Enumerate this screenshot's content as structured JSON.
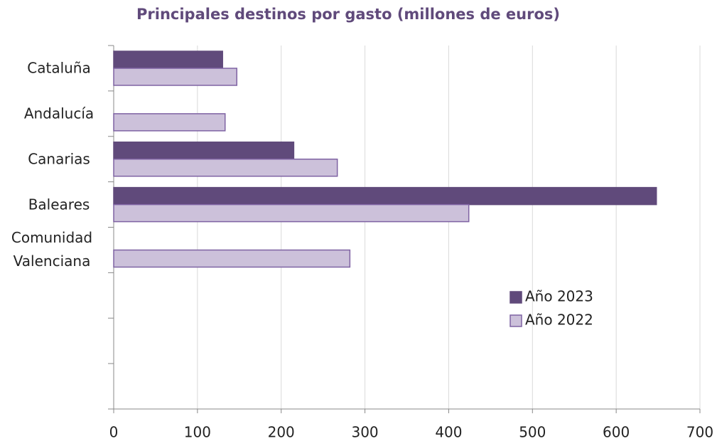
{
  "chart_data": {
    "type": "hbar",
    "title": "Principales destinos por gasto (millones de euros)",
    "categories": [
      "Cataluña",
      "Andalucía",
      "Canarias",
      "Baleares",
      "Comunidad Valenciana",
      null,
      null,
      null
    ],
    "series": [
      {
        "name": "Año 2023",
        "color": "#604a7b",
        "edge": "#604a7b",
        "values": [
          130,
          null,
          215,
          648,
          null,
          null,
          null,
          null
        ]
      },
      {
        "name": "Año 2022",
        "color": "#ccc1da",
        "edge": "#7f63a3",
        "values": [
          147,
          133,
          267,
          424,
          282,
          null,
          null,
          null
        ]
      }
    ],
    "xlim": [
      0,
      700
    ],
    "xticks": [
      0,
      100,
      200,
      300,
      400,
      500,
      600,
      700
    ],
    "grid": true,
    "legend": "right"
  }
}
